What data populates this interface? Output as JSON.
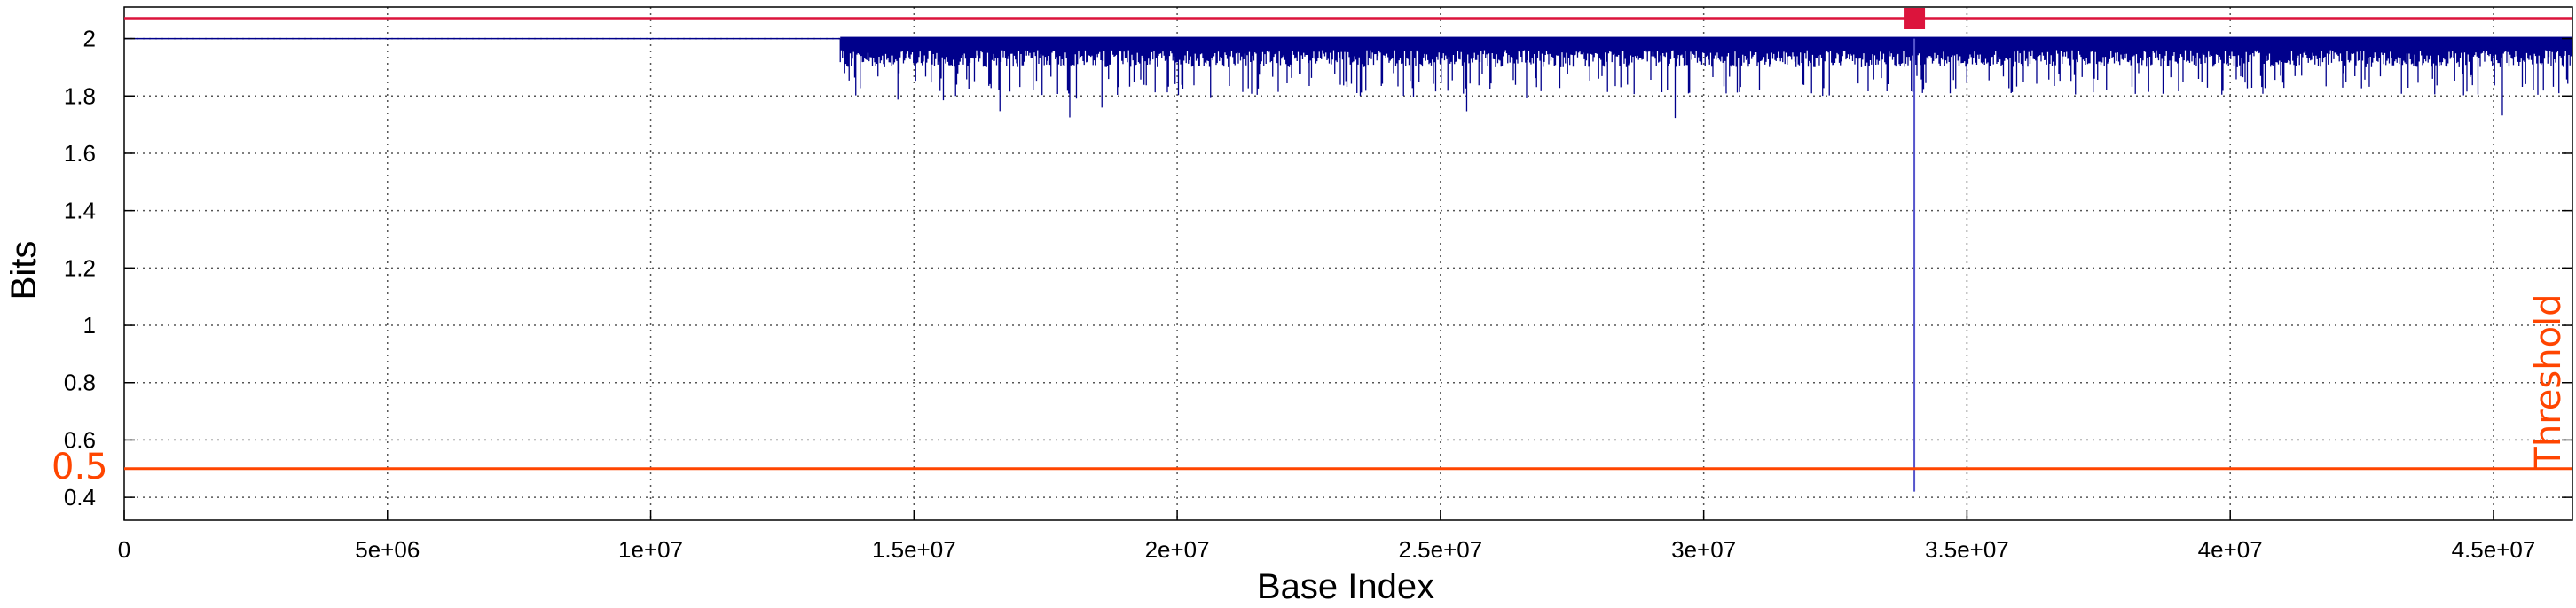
{
  "chart_data": {
    "type": "line",
    "xlabel": "Base Index",
    "ylabel": "Bits",
    "xlim": [
      0,
      46500000
    ],
    "ylim": [
      0.32,
      2.11
    ],
    "x_ticks": [
      {
        "value": 0,
        "label": "0"
      },
      {
        "value": 5000000,
        "label": "5e+06"
      },
      {
        "value": 10000000,
        "label": "1e+07"
      },
      {
        "value": 15000000,
        "label": "1.5e+07"
      },
      {
        "value": 20000000,
        "label": "2e+07"
      },
      {
        "value": 25000000,
        "label": "2.5e+07"
      },
      {
        "value": 30000000,
        "label": "3e+07"
      },
      {
        "value": 35000000,
        "label": "3.5e+07"
      },
      {
        "value": 40000000,
        "label": "4e+07"
      },
      {
        "value": 45000000,
        "label": "4.5e+07"
      }
    ],
    "y_ticks": [
      {
        "value": 0.4,
        "label": "0.4"
      },
      {
        "value": 0.6,
        "label": "0.6"
      },
      {
        "value": 0.8,
        "label": "0.8"
      },
      {
        "value": 1.0,
        "label": "1"
      },
      {
        "value": 1.2,
        "label": "1.2"
      },
      {
        "value": 1.4,
        "label": "1.4"
      },
      {
        "value": 1.6,
        "label": "1.6"
      },
      {
        "value": 1.8,
        "label": "1.8"
      },
      {
        "value": 2.0,
        "label": "2"
      }
    ],
    "grid": true,
    "series": [
      {
        "color": "#00008b",
        "flat_segment": {
          "x_start": 0,
          "x_end": 13600000,
          "y": 2.0
        },
        "noisy_segment": {
          "x_start": 13600000,
          "x_end": 46500000,
          "y_max": 2.0,
          "y_typical_min": 1.88,
          "y_min_observed": 1.72
        },
        "spike": {
          "x": 34000000,
          "y": 0.42
        }
      }
    ],
    "threshold": {
      "value": 0.5,
      "label": "Threshold",
      "value_label": "0.5",
      "color": "#ff4500"
    },
    "top_line": {
      "color": "#dc143c",
      "marker_x": 34000000
    }
  }
}
